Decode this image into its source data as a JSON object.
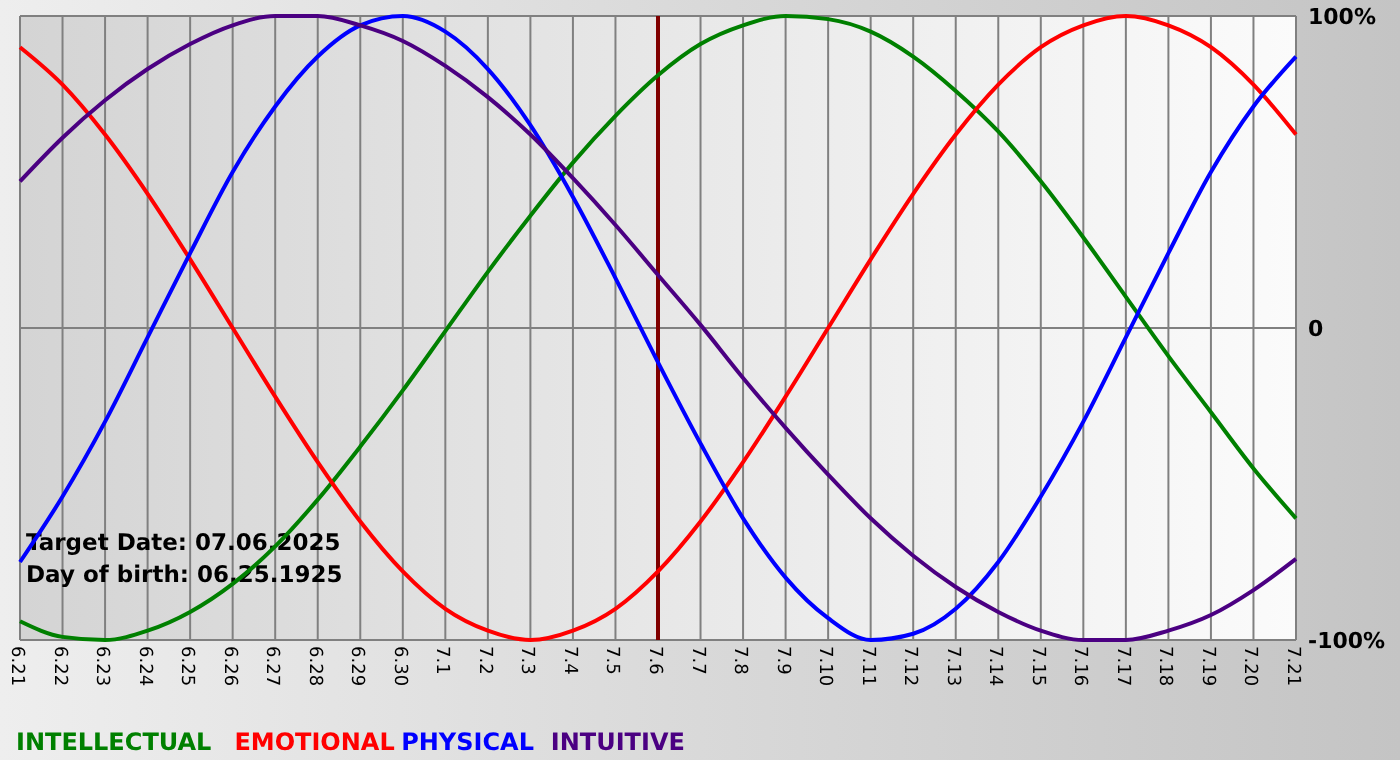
{
  "chart_data": {
    "type": "line",
    "categories": [
      "6.21",
      "6.22",
      "6.23",
      "6.24",
      "6.25",
      "6.26",
      "6.27",
      "6.28",
      "6.29",
      "6.30",
      "7.1",
      "7.2",
      "7.3",
      "7.4",
      "7.5",
      "7.6",
      "7.7",
      "7.8",
      "7.9",
      "7.10",
      "7.11",
      "7.12",
      "7.13",
      "7.14",
      "7.15",
      "7.16",
      "7.17",
      "7.18",
      "7.19",
      "7.20",
      "7.21"
    ],
    "series": [
      {
        "name": "INTELLECTUAL",
        "color": "#008000",
        "values": [
          -94,
          -99,
          -100,
          -97,
          -91,
          -82,
          -70,
          -55,
          -38,
          -20,
          -1,
          18,
          36,
          53,
          68,
          81,
          91,
          97,
          100,
          99,
          95,
          87,
          76,
          63,
          47,
          29,
          10,
          -9,
          -27,
          -45,
          -61
        ]
      },
      {
        "name": "EMOTIONAL",
        "color": "#ff0000",
        "values": [
          90,
          78,
          62,
          43,
          22,
          0,
          -22,
          -43,
          -62,
          -78,
          -90,
          -97,
          -100,
          -97,
          -90,
          -78,
          -62,
          -43,
          -22,
          0,
          22,
          43,
          62,
          78,
          90,
          97,
          100,
          97,
          90,
          78,
          62
        ]
      },
      {
        "name": "PHYSICAL",
        "color": "#0000ff",
        "values": [
          -75,
          -54,
          -30,
          -3,
          24,
          50,
          71,
          87,
          97,
          100,
          95,
          83,
          65,
          42,
          16,
          -11,
          -37,
          -61,
          -80,
          -93,
          -100,
          -98,
          -90,
          -75,
          -54,
          -30,
          -3,
          24,
          50,
          71,
          87
        ]
      },
      {
        "name": "INTUITIVE",
        "color": "#4b0082",
        "values": [
          47,
          61,
          73,
          83,
          91,
          97,
          100,
          100,
          97,
          92,
          84,
          74,
          62,
          48,
          33,
          17,
          1,
          -16,
          -32,
          -47,
          -61,
          -73,
          -83,
          -91,
          -97,
          -100,
          -100,
          -97,
          -92,
          -84,
          -74
        ]
      }
    ],
    "ylim": [
      -100,
      100
    ],
    "yticks": [
      {
        "value": 100,
        "label": "100%"
      },
      0,
      {
        "value": -100,
        "label": "-100%"
      }
    ],
    "grid": true,
    "legend": "bottom",
    "ref_lines": [
      {
        "axis": "x",
        "value": "7.6",
        "color": "#800000"
      }
    ],
    "annotations": [
      "Target Date: 07.06.2025",
      "Day of birth: 06.25.1925"
    ]
  }
}
